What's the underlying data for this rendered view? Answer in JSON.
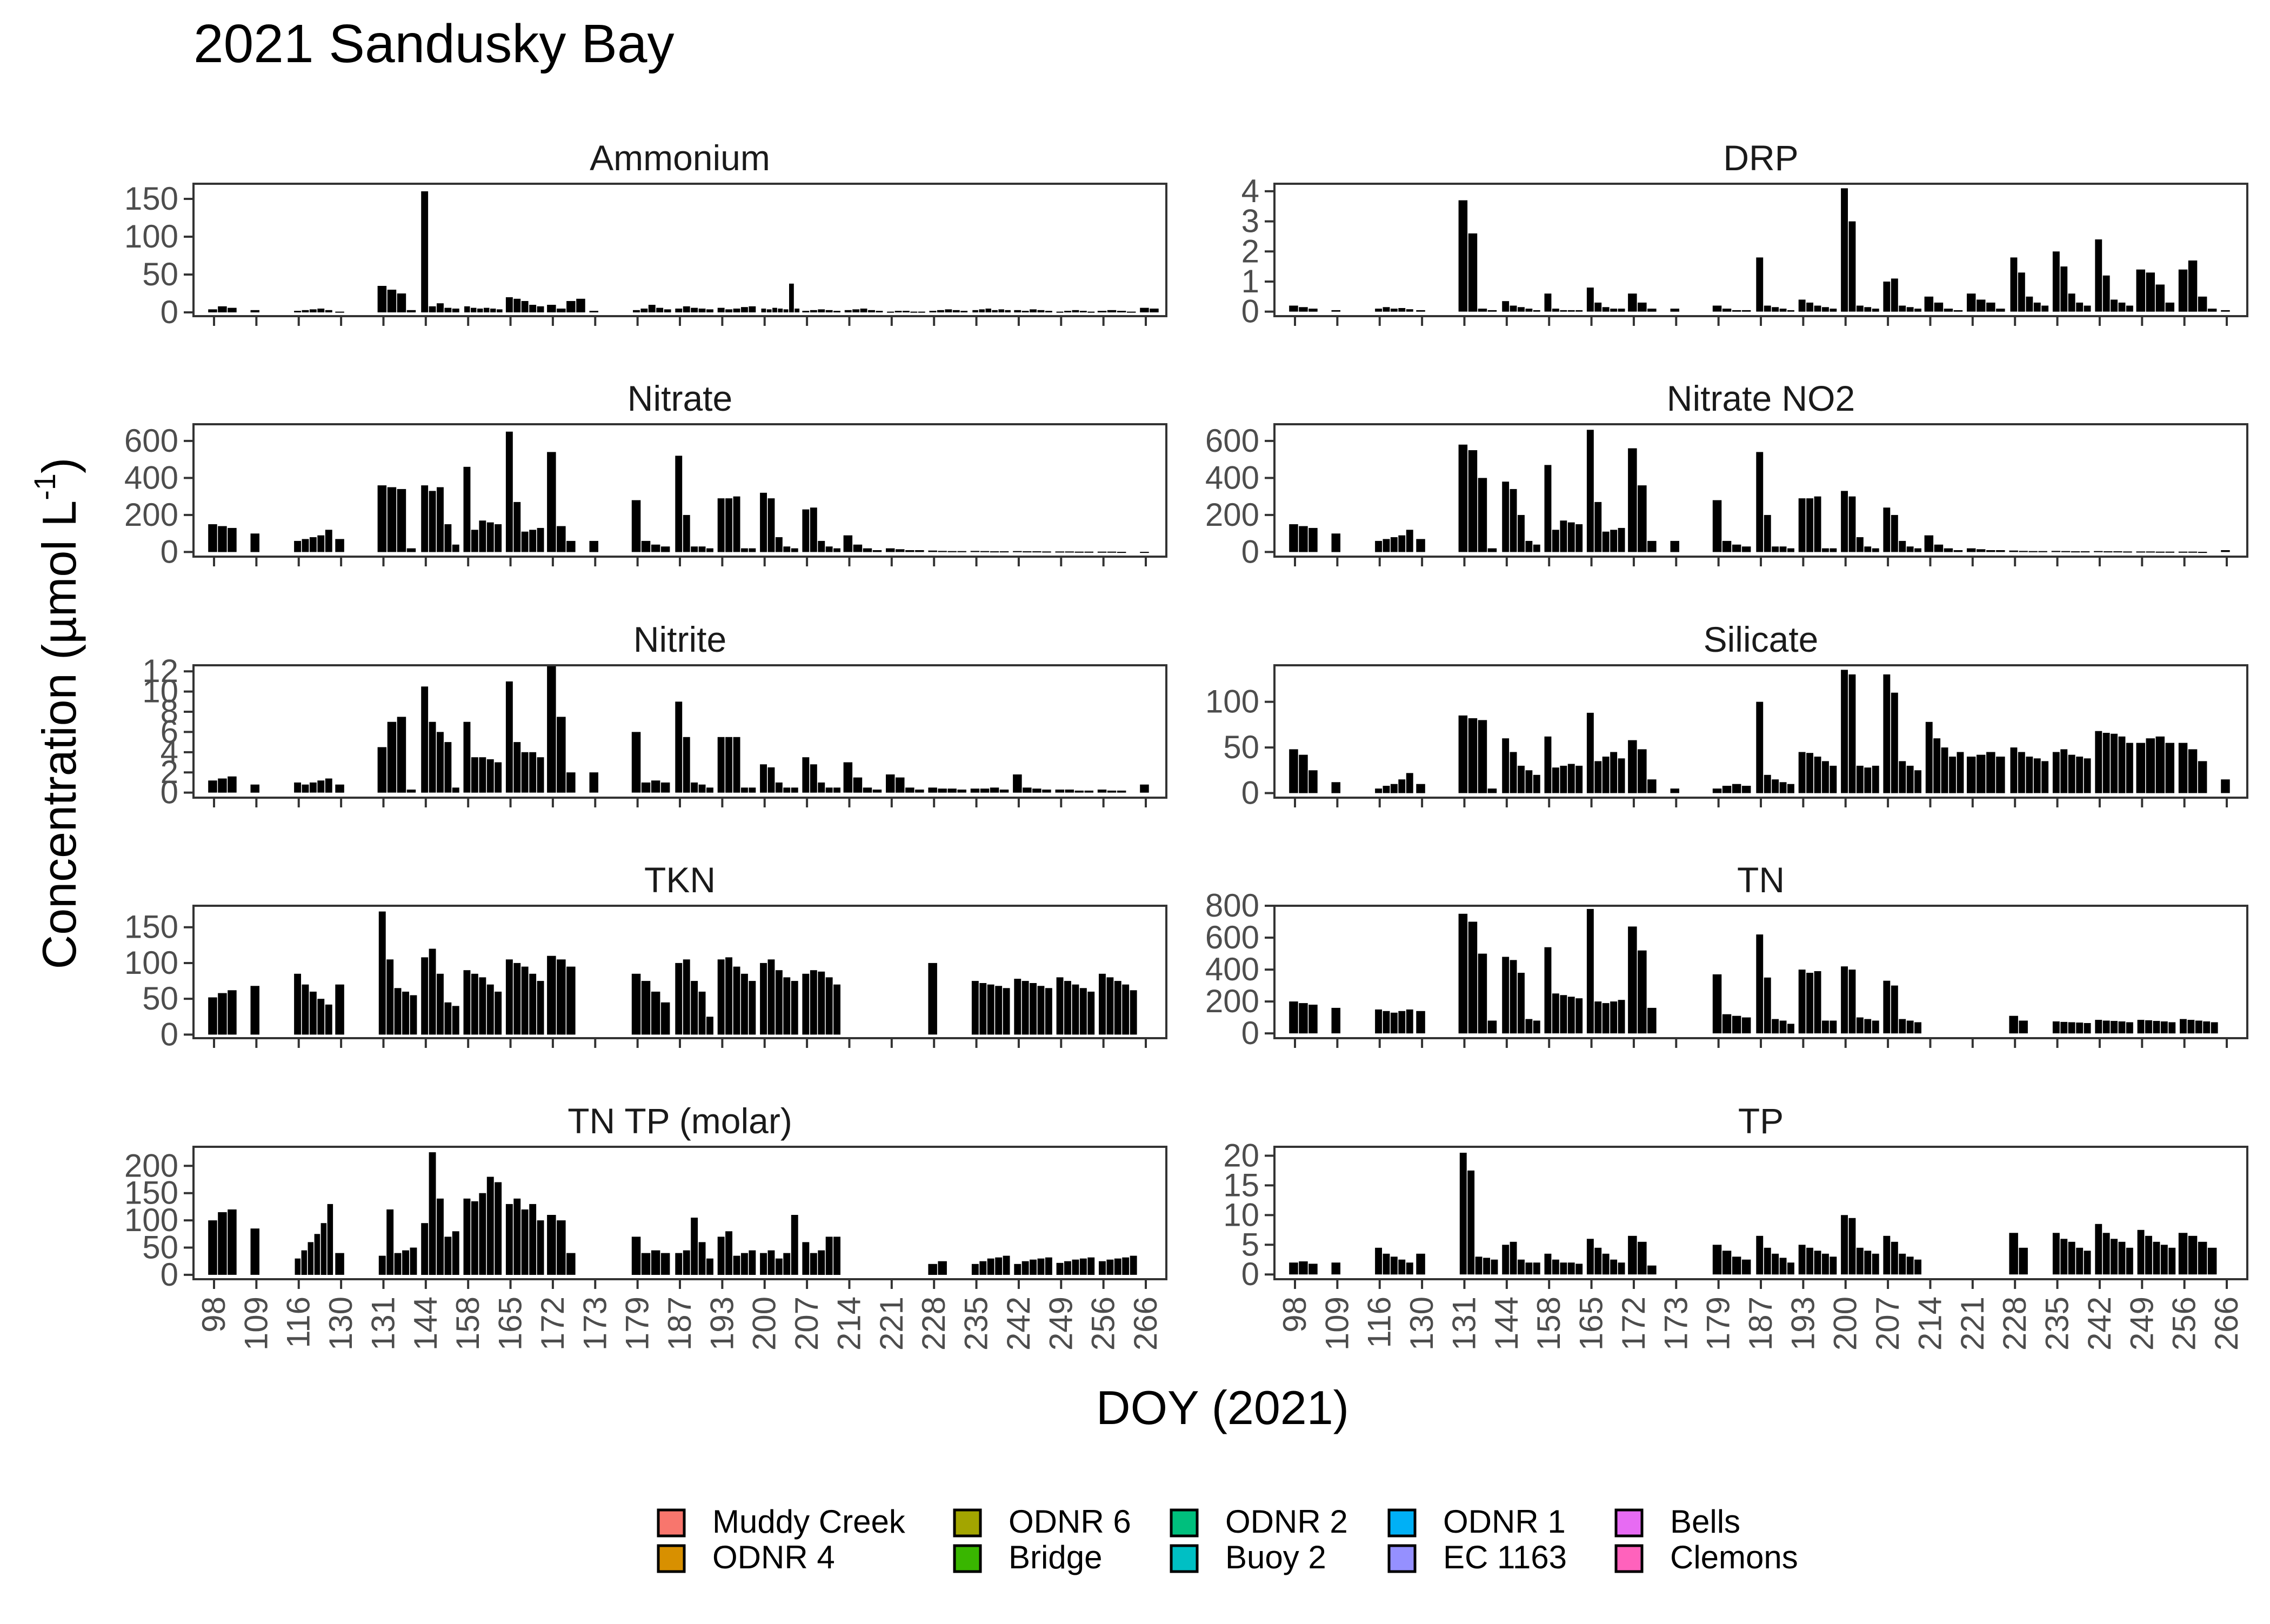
{
  "title": "2021 Sandusky Bay",
  "ylabel_main": "Concentration (µmol L",
  "ylabel_sup": "-1",
  "ylabel_close": ")",
  "xlabel": "DOY (2021)",
  "x_ticks": [
    "98",
    "109",
    "116",
    "130",
    "131",
    "144",
    "158",
    "165",
    "172",
    "173",
    "179",
    "187",
    "193",
    "200",
    "207",
    "214",
    "221",
    "228",
    "235",
    "242",
    "249",
    "256",
    "266"
  ],
  "legend_items": [
    {
      "label": "Muddy Creek",
      "color": "#F8766D"
    },
    {
      "label": "ODNR 4",
      "color": "#D89000"
    },
    {
      "label": "ODNR 6",
      "color": "#A3A500"
    },
    {
      "label": "Bridge",
      "color": "#39B600"
    },
    {
      "label": "ODNR 2",
      "color": "#00BF7D"
    },
    {
      "label": "Buoy 2",
      "color": "#00BFC4"
    },
    {
      "label": "ODNR 1",
      "color": "#00B0F6"
    },
    {
      "label": "EC 1163",
      "color": "#9590FF"
    },
    {
      "label": "Bells",
      "color": "#E76BF3"
    },
    {
      "label": "Clemons",
      "color": "#FF62BC"
    }
  ],
  "chart_data": [
    {
      "type": "bar",
      "title": "Ammonium",
      "yticks": [
        0,
        50,
        100,
        150
      ],
      "ylim": [
        -5,
        170
      ],
      "values": [
        [
          4,
          8,
          6
        ],
        [
          3
        ],
        [
          2,
          3,
          4,
          5,
          3
        ],
        [
          1
        ],
        [
          35,
          30,
          25,
          3
        ],
        [
          160,
          8,
          12,
          6,
          5
        ],
        [
          8,
          6,
          5,
          6,
          5,
          4
        ],
        [
          20,
          18,
          15,
          10,
          8
        ],
        [
          10,
          5,
          15,
          18
        ],
        [
          2
        ],
        [
          3,
          5,
          10,
          6,
          4
        ],
        [
          5,
          8,
          6,
          5,
          4
        ],
        [
          6,
          4,
          5,
          7,
          8
        ],
        [
          5,
          4,
          6,
          5,
          4,
          38,
          5
        ],
        [
          2,
          3,
          4,
          3,
          2
        ],
        [
          3,
          4,
          5,
          3,
          2
        ],
        [
          1,
          2,
          2,
          1,
          1
        ],
        [
          2,
          3,
          4,
          3,
          2
        ],
        [
          3,
          4,
          5,
          3,
          4,
          3
        ],
        [
          3,
          2,
          4,
          3,
          2
        ],
        [
          1,
          2,
          3,
          2,
          1
        ],
        [
          2,
          3,
          2,
          1
        ],
        [
          6,
          5
        ]
      ]
    },
    {
      "type": "bar",
      "title": "DRP",
      "yticks": [
        0,
        1,
        2,
        3,
        4
      ],
      "ylim": [
        -0.15,
        4.25
      ],
      "values": [
        [
          0.2,
          0.15,
          0.1
        ],
        [
          0.05
        ],
        [
          0.1,
          0.15,
          0.1,
          0.12,
          0.08
        ],
        [
          0.05
        ],
        [
          3.7,
          2.6,
          0.1,
          0.05
        ],
        [
          0.35,
          0.2,
          0.15,
          0.1,
          0.05
        ],
        [
          0.6,
          0.1,
          0.05,
          0.05,
          0.05
        ],
        [
          0.8,
          0.3,
          0.15,
          0.1,
          0.1
        ],
        [
          0.6,
          0.3,
          0.1
        ],
        [
          0.1
        ],
        [
          0.2,
          0.1,
          0.05,
          0.05
        ],
        [
          1.8,
          0.2,
          0.15,
          0.1,
          0.05
        ],
        [
          0.4,
          0.3,
          0.2,
          0.15,
          0.1
        ],
        [
          4.1,
          3.0,
          0.2,
          0.15,
          0.1
        ],
        [
          1.0,
          1.1,
          0.2,
          0.15,
          0.1
        ],
        [
          0.5,
          0.3,
          0.1,
          0.05
        ],
        [
          0.6,
          0.4,
          0.3,
          0.1
        ],
        [
          1.8,
          1.3,
          0.5,
          0.3,
          0.2
        ],
        [
          2.0,
          1.5,
          0.6,
          0.3,
          0.2
        ],
        [
          2.4,
          1.2,
          0.4,
          0.3,
          0.2
        ],
        [
          1.4,
          1.3,
          0.9,
          0.3
        ],
        [
          1.4,
          1.7,
          0.5,
          0.1
        ],
        [
          0.05
        ]
      ]
    },
    {
      "type": "bar",
      "title": "Nitrate",
      "yticks": [
        0,
        200,
        400,
        600
      ],
      "ylim": [
        -25,
        690
      ],
      "values": [
        [
          150,
          140,
          130
        ],
        [
          100
        ],
        [
          60,
          70,
          80,
          90,
          120
        ],
        [
          70
        ],
        [
          360,
          350,
          340,
          20
        ],
        [
          360,
          330,
          350,
          150,
          40
        ],
        [
          460,
          120,
          170,
          160,
          150
        ],
        [
          650,
          270,
          110,
          120,
          130
        ],
        [
          540,
          140,
          60
        ],
        [
          60
        ],
        [
          280,
          60,
          40,
          30
        ],
        [
          520,
          200,
          30,
          30,
          20
        ],
        [
          290,
          290,
          300,
          20,
          20
        ],
        [
          320,
          290,
          80,
          30,
          20
        ],
        [
          230,
          240,
          60,
          30,
          20
        ],
        [
          90,
          40,
          20,
          10
        ],
        [
          20,
          15,
          10,
          10
        ],
        [
          8,
          6,
          5,
          5
        ],
        [
          6,
          5,
          4,
          4
        ],
        [
          5,
          4,
          4,
          3
        ],
        [
          3,
          3,
          2,
          2
        ],
        [
          2,
          2,
          1
        ],
        [
          1
        ]
      ]
    },
    {
      "type": "bar",
      "title": "Nitrate NO2",
      "yticks": [
        0,
        200,
        400,
        600
      ],
      "ylim": [
        -25,
        690
      ],
      "values": [
        [
          150,
          140,
          130
        ],
        [
          100
        ],
        [
          60,
          70,
          80,
          90,
          120
        ],
        [
          70
        ],
        [
          580,
          550,
          400,
          20
        ],
        [
          380,
          340,
          200,
          60,
          40
        ],
        [
          470,
          120,
          170,
          160,
          150
        ],
        [
          660,
          270,
          110,
          120,
          130
        ],
        [
          560,
          360,
          60
        ],
        [
          60
        ],
        [
          280,
          60,
          40,
          30
        ],
        [
          540,
          200,
          30,
          30,
          20
        ],
        [
          290,
          290,
          300,
          20,
          20
        ],
        [
          330,
          300,
          80,
          30,
          20
        ],
        [
          240,
          200,
          60,
          30,
          20
        ],
        [
          90,
          40,
          20,
          10
        ],
        [
          20,
          15,
          10,
          10
        ],
        [
          8,
          6,
          5,
          5
        ],
        [
          6,
          5,
          4,
          4
        ],
        [
          5,
          4,
          4,
          3
        ],
        [
          3,
          3,
          2,
          2
        ],
        [
          2,
          2,
          1
        ],
        [
          10
        ]
      ]
    },
    {
      "type": "bar",
      "title": "Nitrite",
      "yticks": [
        0,
        2,
        4,
        6,
        8,
        10,
        12
      ],
      "ylim": [
        -0.5,
        12.6
      ],
      "values": [
        [
          1.2,
          1.4,
          1.6
        ],
        [
          0.8
        ],
        [
          1.0,
          0.8,
          1.0,
          1.2,
          1.4
        ],
        [
          0.8
        ],
        [
          4.5,
          7.0,
          7.5,
          0.3
        ],
        [
          10.5,
          7.0,
          6.0,
          5.0,
          0.5
        ],
        [
          7.0,
          3.5,
          3.5,
          3.3,
          3.0
        ],
        [
          11.0,
          5.0,
          4.0,
          4.0,
          3.5
        ],
        [
          12.5,
          7.5,
          2.0
        ],
        [
          2.0
        ],
        [
          6.0,
          1.0,
          1.2,
          1.0
        ],
        [
          9.0,
          5.5,
          1.0,
          0.8,
          0.5
        ],
        [
          5.5,
          5.5,
          5.5,
          0.5,
          0.5
        ],
        [
          2.8,
          2.5,
          1.0,
          0.5,
          0.5
        ],
        [
          3.5,
          2.8,
          1.0,
          0.5,
          0.5
        ],
        [
          3.0,
          1.5,
          0.5,
          0.3
        ],
        [
          1.8,
          1.5,
          0.5,
          0.3
        ],
        [
          0.5,
          0.4,
          0.4,
          0.3
        ],
        [
          0.4,
          0.4,
          0.5,
          0.3
        ],
        [
          1.8,
          0.5,
          0.4,
          0.3
        ],
        [
          0.3,
          0.3,
          0.2,
          0.2
        ],
        [
          0.3,
          0.2,
          0.2
        ],
        [
          0.8
        ]
      ]
    },
    {
      "type": "bar",
      "title": "Silicate",
      "yticks": [
        0,
        50,
        100
      ],
      "ylim": [
        -5,
        140
      ],
      "values": [
        [
          48,
          42,
          25
        ],
        [
          12
        ],
        [
          5,
          8,
          10,
          15,
          22
        ],
        [
          10
        ],
        [
          85,
          82,
          80,
          5
        ],
        [
          60,
          45,
          30,
          25,
          20
        ],
        [
          62,
          28,
          30,
          32,
          30
        ],
        [
          88,
          35,
          40,
          45,
          38
        ],
        [
          58,
          48,
          15
        ],
        [
          5
        ],
        [
          5,
          8,
          10,
          8
        ],
        [
          100,
          20,
          15,
          12,
          10
        ],
        [
          45,
          44,
          40,
          35,
          30
        ],
        [
          135,
          130,
          30,
          28,
          30
        ],
        [
          130,
          110,
          35,
          30,
          25
        ],
        [
          78,
          60,
          50,
          40,
          45
        ],
        [
          40,
          42,
          45,
          40
        ],
        [
          50,
          45,
          40,
          38,
          35
        ],
        [
          45,
          48,
          42,
          40,
          38
        ],
        [
          68,
          66,
          65,
          62,
          55
        ],
        [
          55,
          60,
          62,
          55
        ],
        [
          55,
          48,
          35
        ],
        [
          15
        ]
      ]
    },
    {
      "type": "bar",
      "title": "TKN",
      "yticks": [
        0,
        50,
        100,
        150
      ],
      "ylim": [
        -5,
        180
      ],
      "values": [
        [
          52,
          58,
          62
        ],
        [
          68
        ],
        [
          85,
          70,
          60,
          50,
          42
        ],
        [
          70
        ],
        [
          172,
          105,
          65,
          60,
          55
        ],
        [
          108,
          120,
          85,
          45,
          40
        ],
        [
          90,
          85,
          80,
          70,
          60
        ],
        [
          105,
          100,
          95,
          85,
          75
        ],
        [
          110,
          105,
          95
        ],
        [],
        [
          85,
          75,
          60,
          45
        ],
        [
          100,
          105,
          75,
          60,
          25
        ],
        [
          105,
          108,
          95,
          85,
          75
        ],
        [
          100,
          105,
          90,
          80,
          75
        ],
        [
          85,
          90,
          88,
          80,
          70
        ],
        [],
        [],
        [
          100
        ],
        [
          75,
          72,
          70,
          68,
          65
        ],
        [
          78,
          75,
          72,
          68,
          65
        ],
        [
          80,
          75,
          70,
          65,
          60
        ],
        [
          85,
          80,
          75,
          70,
          62
        ],
        []
      ]
    },
    {
      "type": "bar",
      "title": "TN",
      "yticks": [
        0,
        200,
        400,
        600,
        800
      ],
      "ylim": [
        -30,
        800
      ],
      "values": [
        [
          200,
          190,
          180
        ],
        [
          160
        ],
        [
          150,
          140,
          130,
          140,
          150
        ],
        [
          140
        ],
        [
          750,
          700,
          500,
          80
        ],
        [
          480,
          460,
          380,
          90,
          80
        ],
        [
          540,
          250,
          240,
          230,
          220
        ],
        [
          780,
          200,
          190,
          200,
          210
        ],
        [
          670,
          520,
          160
        ],
        [],
        [
          370,
          120,
          110,
          100
        ],
        [
          620,
          350,
          90,
          80,
          60
        ],
        [
          400,
          380,
          390,
          80,
          80
        ],
        [
          420,
          400,
          100,
          90,
          80
        ],
        [
          330,
          300,
          90,
          80,
          70
        ],
        [],
        [],
        [
          110,
          80
        ],
        [
          75,
          72,
          70,
          68,
          65
        ],
        [
          85,
          80,
          78,
          75,
          70
        ],
        [
          85,
          82,
          78,
          75,
          70
        ],
        [
          90,
          85,
          80,
          75,
          70
        ],
        []
      ]
    },
    {
      "type": "bar",
      "title": "TN TP (molar)",
      "yticks": [
        0,
        50,
        100,
        150,
        200
      ],
      "ylim": [
        -8,
        235
      ],
      "values": [
        [
          100,
          115,
          120
        ],
        [
          85
        ],
        [
          30,
          45,
          60,
          75,
          95,
          130
        ],
        [
          40
        ],
        [
          35,
          120,
          40,
          45,
          50
        ],
        [
          95,
          225,
          140,
          70,
          80
        ],
        [
          140,
          135,
          150,
          180,
          170
        ],
        [
          130,
          140,
          120,
          130,
          100
        ],
        [
          110,
          100,
          40
        ],
        [],
        [
          70,
          40,
          45,
          40
        ],
        [
          40,
          45,
          105,
          60,
          30
        ],
        [
          70,
          80,
          35,
          40,
          45
        ],
        [
          40,
          45,
          30,
          40,
          110
        ],
        [
          60,
          40,
          45,
          70,
          70
        ],
        [],
        [],
        [
          20,
          25
        ],
        [
          20,
          25,
          30,
          32,
          35
        ],
        [
          20,
          25,
          28,
          30,
          32
        ],
        [
          22,
          25,
          28,
          30,
          32
        ],
        [
          25,
          28,
          30,
          32,
          35
        ],
        []
      ]
    },
    {
      "type": "bar",
      "title": "TP",
      "yticks": [
        0,
        5,
        10,
        15,
        20
      ],
      "ylim": [
        -0.8,
        21.5
      ],
      "values": [
        [
          2.0,
          2.2,
          1.8
        ],
        [
          2.0
        ],
        [
          4.5,
          3.5,
          3.0,
          2.5,
          2.0
        ],
        [
          3.5
        ],
        [
          20.5,
          17.5,
          3.0,
          2.8,
          2.5
        ],
        [
          5.0,
          5.5,
          2.5,
          2.0,
          2.0
        ],
        [
          3.5,
          2.5,
          2.0,
          2.0,
          1.8
        ],
        [
          6.0,
          4.5,
          3.5,
          2.5,
          2.0
        ],
        [
          6.5,
          5.5,
          1.5
        ],
        [],
        [
          5.0,
          4.0,
          3.0,
          2.5
        ],
        [
          6.5,
          4.5,
          3.5,
          2.8,
          2.0
        ],
        [
          5.0,
          4.5,
          4.0,
          3.5,
          3.0
        ],
        [
          10.0,
          9.5,
          4.5,
          4.0,
          3.5
        ],
        [
          6.5,
          5.5,
          3.5,
          3.0,
          2.5
        ],
        [],
        [],
        [
          7.0,
          4.5
        ],
        [
          7.0,
          6.0,
          5.5,
          4.5,
          4.0
        ],
        [
          8.5,
          7.0,
          6.0,
          5.5,
          4.5
        ],
        [
          7.5,
          6.5,
          5.5,
          5.0,
          4.5
        ],
        [
          7.0,
          6.5,
          5.5,
          4.5
        ],
        []
      ]
    }
  ]
}
